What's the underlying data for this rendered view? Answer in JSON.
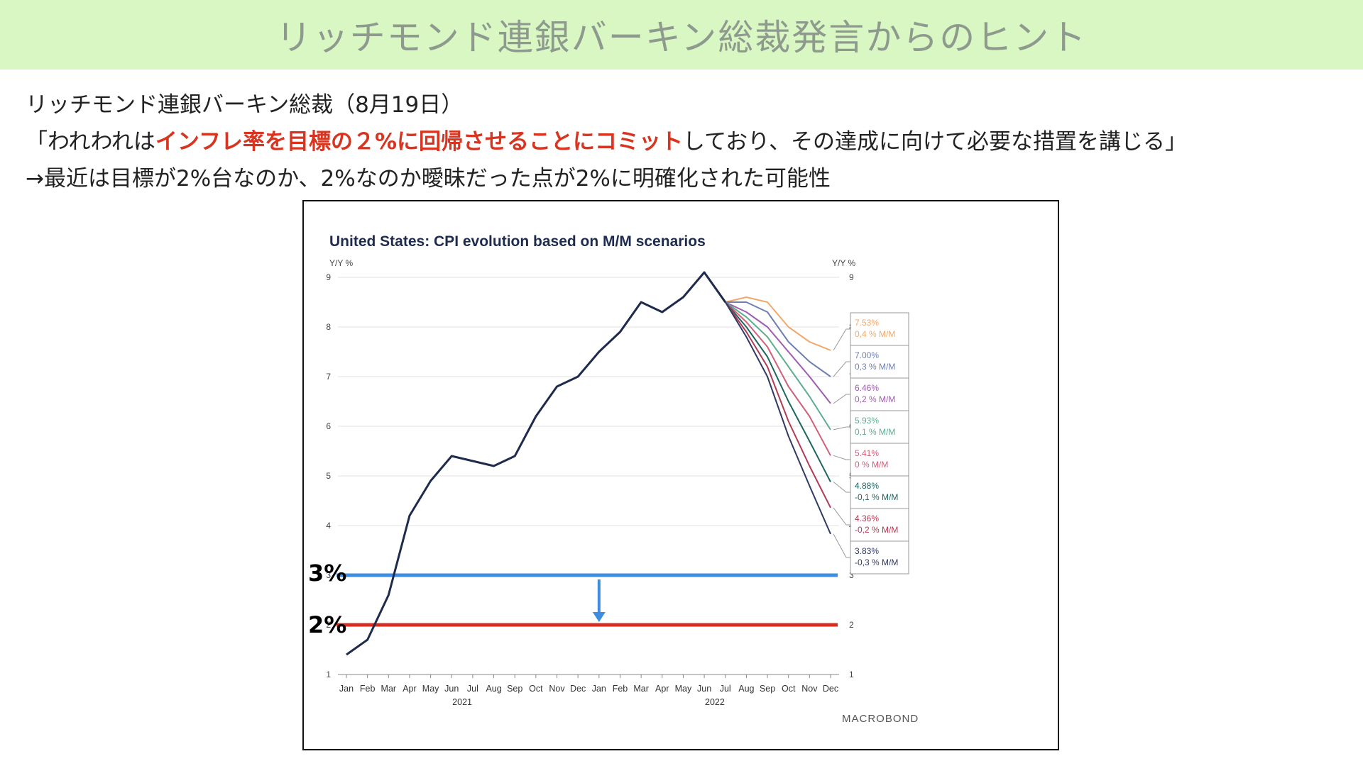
{
  "slide": {
    "title": "リッチモンド連銀バーキン総裁発言からのヒント",
    "line1": "リッチモンド連銀バーキン総裁（8月19日）",
    "line2_pre": "「われわれは",
    "line2_highlight": "インフレ率を目標の２%に回帰させることにコミット",
    "line2_post": "しており、その達成に向けて必要な措置を講じる」",
    "line3": "→最近は目標が2%台なのか、2%なのか曖昧だった点が2%に明確化された可能性",
    "colors": {
      "title_bg": "#d9f7c3",
      "highlight": "#d8341f"
    }
  },
  "chart_data": {
    "type": "line",
    "title": "United States: CPI evolution based on M/M scenarios",
    "ylabel_left": "Y/Y %",
    "ylabel_right": "Y/Y %",
    "ylim": [
      1,
      9
    ],
    "yticks": [
      1,
      2,
      3,
      4,
      5,
      6,
      7,
      8,
      9
    ],
    "grid": true,
    "months": [
      "Jan",
      "Feb",
      "Mar",
      "Apr",
      "May",
      "Jun",
      "Jul",
      "Aug",
      "Sep",
      "Oct",
      "Nov",
      "Dec",
      "Jan",
      "Feb",
      "Mar",
      "Apr",
      "May",
      "Jun",
      "Jul",
      "Aug",
      "Sep",
      "Oct",
      "Nov",
      "Dec"
    ],
    "years": [
      {
        "label": "2021",
        "at_index": 5.5
      },
      {
        "label": "2022",
        "at_index": 17.5
      }
    ],
    "main_series": {
      "color": "#1e2b4d",
      "values": [
        1.4,
        1.7,
        2.6,
        4.2,
        4.9,
        5.4,
        5.3,
        5.2,
        5.4,
        6.2,
        6.8,
        7.0,
        7.5,
        7.9,
        8.5,
        8.3,
        8.6,
        9.1,
        8.5
      ]
    },
    "scenarios": [
      {
        "label_pct": "7.53%",
        "label_mm": "0,4 % M/M",
        "color": "#f2a86b",
        "values": [
          8.5,
          8.6,
          8.5,
          8.0,
          7.7,
          7.53
        ]
      },
      {
        "label_pct": "7.00%",
        "label_mm": "0,3 % M/M",
        "color": "#6e7fb3",
        "values": [
          8.5,
          8.5,
          8.3,
          7.7,
          7.3,
          7.0
        ]
      },
      {
        "label_pct": "6.46%",
        "label_mm": "0,2 % M/M",
        "color": "#a05cb0",
        "values": [
          8.5,
          8.3,
          8.0,
          7.5,
          7.0,
          6.46
        ]
      },
      {
        "label_pct": "5.93%",
        "label_mm": "0,1 % M/M",
        "color": "#5fae8e",
        "values": [
          8.5,
          8.2,
          7.8,
          7.2,
          6.6,
          5.93
        ]
      },
      {
        "label_pct": "5.41%",
        "label_mm": "0 % M/M",
        "color": "#d0607a",
        "values": [
          8.5,
          8.1,
          7.6,
          6.8,
          6.2,
          5.41
        ]
      },
      {
        "label_pct": "4.88%",
        "label_mm": "-0,1 % M/M",
        "color": "#1e6660",
        "values": [
          8.5,
          8.0,
          7.4,
          6.5,
          5.7,
          4.88
        ]
      },
      {
        "label_pct": "4.36%",
        "label_mm": "-0,2 % M/M",
        "color": "#b33a55",
        "values": [
          8.5,
          7.9,
          7.2,
          6.1,
          5.2,
          4.36
        ]
      },
      {
        "label_pct": "3.83%",
        "label_mm": "-0,3 % M/M",
        "color": "#2f3a66",
        "values": [
          8.5,
          7.8,
          7.0,
          5.8,
          4.8,
          3.83
        ]
      }
    ],
    "reference_lines": [
      {
        "label": "3%",
        "value": 3,
        "color": "#3d8ee0"
      },
      {
        "label": "2%",
        "value": 2,
        "color": "#d62d20"
      }
    ],
    "arrow": {
      "from": 3,
      "to": 2,
      "at_index": 12,
      "color": "#3d8ee0"
    },
    "watermark": "MACROBOND"
  }
}
